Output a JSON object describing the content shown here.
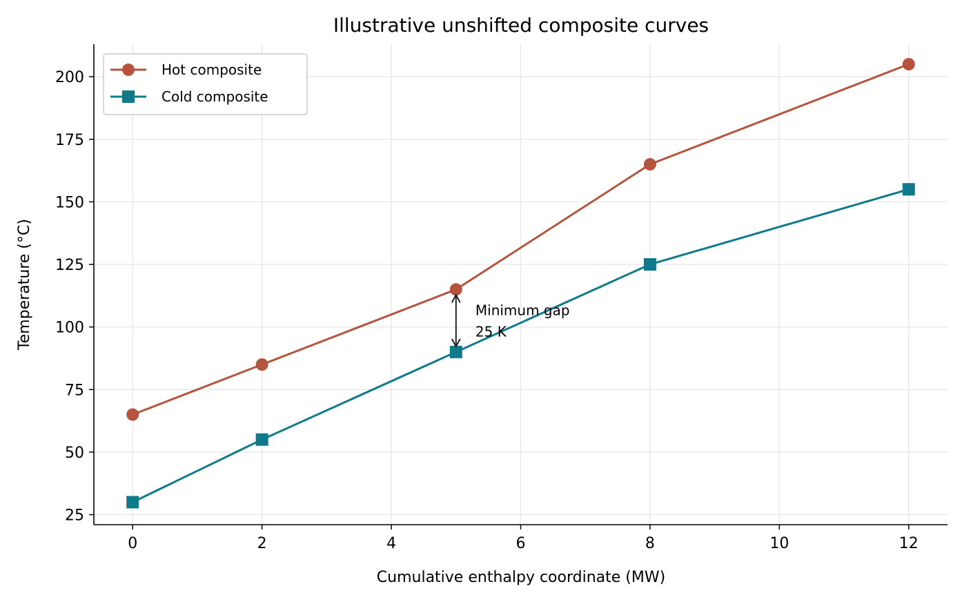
{
  "chart_data": {
    "type": "line",
    "title": "Illustrative unshifted composite curves",
    "xlabel": "Cumulative enthalpy coordinate (MW)",
    "ylabel": "Temperature (°C)",
    "xlim": [
      -0.6,
      12.6
    ],
    "ylim": [
      21,
      213
    ],
    "xticks": [
      0,
      2,
      4,
      6,
      8,
      10,
      12
    ],
    "yticks": [
      25,
      50,
      75,
      100,
      125,
      150,
      175,
      200
    ],
    "grid": true,
    "legend_position": "upper-left",
    "series": [
      {
        "name": "Hot composite",
        "color": "#b5533c",
        "marker": "circle",
        "x": [
          0,
          2,
          5,
          8,
          12
        ],
        "y": [
          65,
          85,
          115,
          165,
          205
        ]
      },
      {
        "name": "Cold composite",
        "color": "#0f7b8a",
        "marker": "square",
        "x": [
          0,
          2,
          5,
          8,
          12
        ],
        "y": [
          30,
          55,
          90,
          125,
          155
        ]
      }
    ],
    "annotation": {
      "text_line1": "Minimum gap",
      "text_line2": "25 K",
      "arrow_x": 5,
      "arrow_from_y": 115,
      "arrow_to_y": 90,
      "text_x": 5.3,
      "text_y": 102.5
    }
  }
}
